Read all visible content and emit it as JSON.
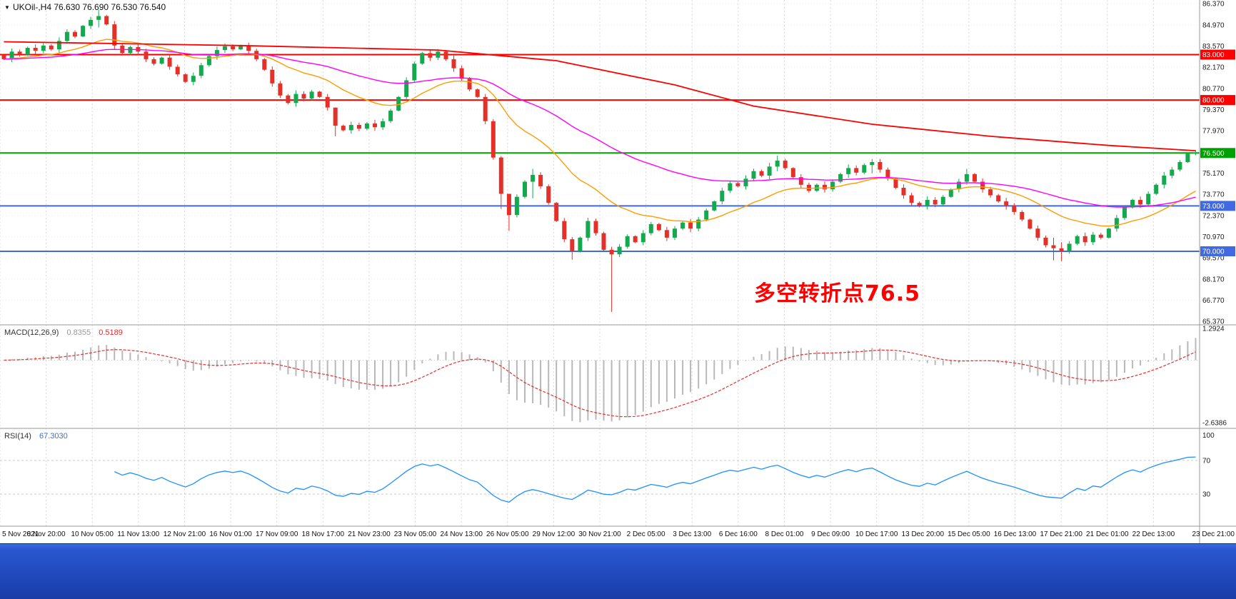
{
  "header": {
    "dropdown_glyph": "▼",
    "symbol_ohlc": "UKOil-,H4 76.630 76.690 76.530 76.540"
  },
  "chart_data": {
    "type": "candlestick",
    "symbol": "UKOil-",
    "timeframe": "H4",
    "ohlc_readout": {
      "open": "76.630",
      "high": "76.690",
      "low": "76.530",
      "close": "76.540"
    },
    "annotation": {
      "text": "多空转折点76.5",
      "color": "#ff0000"
    },
    "x_labels": [
      "5 Nov 2021",
      "8 Nov 20:00",
      "10 Nov 05:00",
      "11 Nov 13:00",
      "12 Nov 21:00",
      "16 Nov 01:00",
      "17 Nov 09:00",
      "18 Nov 17:00",
      "21 Nov 23:00",
      "23 Nov 05:00",
      "24 Nov 13:00",
      "26 Nov 05:00",
      "29 Nov 12:00",
      "30 Nov 21:00",
      "2 Dec 05:00",
      "3 Dec 13:00",
      "6 Dec 16:00",
      "8 Dec 01:00",
      "9 Dec 09:00",
      "10 Dec 17:00",
      "13 Dec 20:00",
      "15 Dec 05:00",
      "16 Dec 13:00",
      "17 Dec 21:00",
      "21 Dec 01:00",
      "22 Dec 13:00",
      "23 Dec 21:00"
    ],
    "price_ticks": [
      "86.370",
      "84.970",
      "83.570",
      "82.170",
      "80.770",
      "79.370",
      "77.970",
      "75.170",
      "73.770",
      "72.370",
      "70.970",
      "69.570",
      "68.170",
      "66.770",
      "65.370"
    ],
    "levels": [
      {
        "label": "83.000",
        "price": 83.0,
        "color": "#ff0000"
      },
      {
        "label": "80.000",
        "price": 80.0,
        "color": "#ff0000"
      },
      {
        "label": "76.500",
        "price": 76.5,
        "color": "#00a000"
      },
      {
        "label": "73.000",
        "price": 73.0,
        "color": "#4169e1"
      },
      {
        "label": "70.000",
        "price": 70.0,
        "color": "#4169e1"
      }
    ],
    "candles": {
      "first_open": 82.95,
      "default_wick": 0.12,
      "closes": [
        82.7,
        83.2,
        83.0,
        83.45,
        83.25,
        83.6,
        83.35,
        83.9,
        84.5,
        84.2,
        84.9,
        85.3,
        85.55,
        85.0,
        83.6,
        83.1,
        83.5,
        83.2,
        82.7,
        82.4,
        82.8,
        82.2,
        81.7,
        81.2,
        81.6,
        82.3,
        82.9,
        83.3,
        83.55,
        83.35,
        83.6,
        83.25,
        82.7,
        82.0,
        81.1,
        80.3,
        79.8,
        80.4,
        80.1,
        80.55,
        80.2,
        79.5,
        78.3,
        78.0,
        78.35,
        78.1,
        78.45,
        78.2,
        78.6,
        79.3,
        80.2,
        81.3,
        82.4,
        83.1,
        82.8,
        83.2,
        82.7,
        82.1,
        81.4,
        80.7,
        80.2,
        78.6,
        76.2,
        73.8,
        72.4,
        73.6,
        74.6,
        75.05,
        74.3,
        73.2,
        72.0,
        70.8,
        70.0,
        70.9,
        72.0,
        71.2,
        70.1,
        69.8,
        70.3,
        71.0,
        70.6,
        71.2,
        71.8,
        71.4,
        70.9,
        71.5,
        71.9,
        71.5,
        72.1,
        72.7,
        73.3,
        74.0,
        74.5,
        74.3,
        74.8,
        75.3,
        75.0,
        75.6,
        76.0,
        75.5,
        74.9,
        74.4,
        74.0,
        74.4,
        74.1,
        74.6,
        75.1,
        75.5,
        75.2,
        75.7,
        75.9,
        75.4,
        74.8,
        74.2,
        73.7,
        73.2,
        73.0,
        73.4,
        73.1,
        73.6,
        74.1,
        74.6,
        75.1,
        74.6,
        74.1,
        73.7,
        73.3,
        73.0,
        72.6,
        72.1,
        71.5,
        70.9,
        70.4,
        70.2,
        70.0,
        70.5,
        71.0,
        70.6,
        71.1,
        70.9,
        71.5,
        72.2,
        72.9,
        73.4,
        73.1,
        73.8,
        74.4,
        75.0,
        75.4,
        75.9,
        76.45,
        76.54
      ],
      "wick_overrides": {
        "12": [
          85.95,
          84.8
        ],
        "42": [
          78.45,
          77.6
        ],
        "63": [
          76.3,
          72.8
        ],
        "64": [
          73.7,
          71.35
        ],
        "67": [
          75.45,
          73.5
        ],
        "72": [
          70.95,
          69.45
        ],
        "77": [
          70.3,
          66.0
        ],
        "98": [
          76.32,
          75.3
        ],
        "110": [
          76.1,
          75.15
        ],
        "122": [
          75.45,
          74.4
        ],
        "133": [
          70.9,
          69.4
        ],
        "134": [
          70.6,
          69.35
        ],
        "151": [
          76.69,
          76.35
        ]
      }
    },
    "moving_averages": [
      {
        "name": "fast-ma",
        "color": "#ff9c00",
        "type": "ema",
        "period": 18
      },
      {
        "name": "medium-ma",
        "color": "#ff00ff",
        "type": "ema",
        "period": 48
      },
      {
        "name": "slow-ma",
        "color": "#ff0000",
        "type": "anchors",
        "points": [
          [
            0,
            83.85
          ],
          [
            30,
            83.6
          ],
          [
            55,
            83.3
          ],
          [
            70,
            82.6
          ],
          [
            85,
            81.0
          ],
          [
            95,
            79.6
          ],
          [
            110,
            78.4
          ],
          [
            125,
            77.6
          ],
          [
            140,
            77.0
          ],
          [
            151,
            76.65
          ]
        ]
      }
    ],
    "indicators": {
      "macd": {
        "title": "MACD(12,26,9)",
        "value_main": "0.8355",
        "value_signal": "0.5189",
        "fast": 12,
        "slow": 26,
        "signal": 9,
        "axis_max": "1.2924",
        "axis_min": "-2.6386",
        "histogram_color": "#b8b8b8",
        "signal_color": "#e03232"
      },
      "rsi": {
        "title": "RSI(14)",
        "value": "67.3030",
        "period": 14,
        "axis_labels": [
          "100",
          "70",
          "30"
        ],
        "guide_levels": [
          70,
          30
        ],
        "line_color": "#1e90ff"
      }
    },
    "colors": {
      "bull": "#14a84f",
      "bear": "#e3312a",
      "grid": "#d9d9d9",
      "pane_border": "#9a9a9a",
      "background": "#ffffff",
      "axis_text": "#1a1a1a"
    }
  },
  "taskbar": {
    "color": "#2a58d0"
  }
}
